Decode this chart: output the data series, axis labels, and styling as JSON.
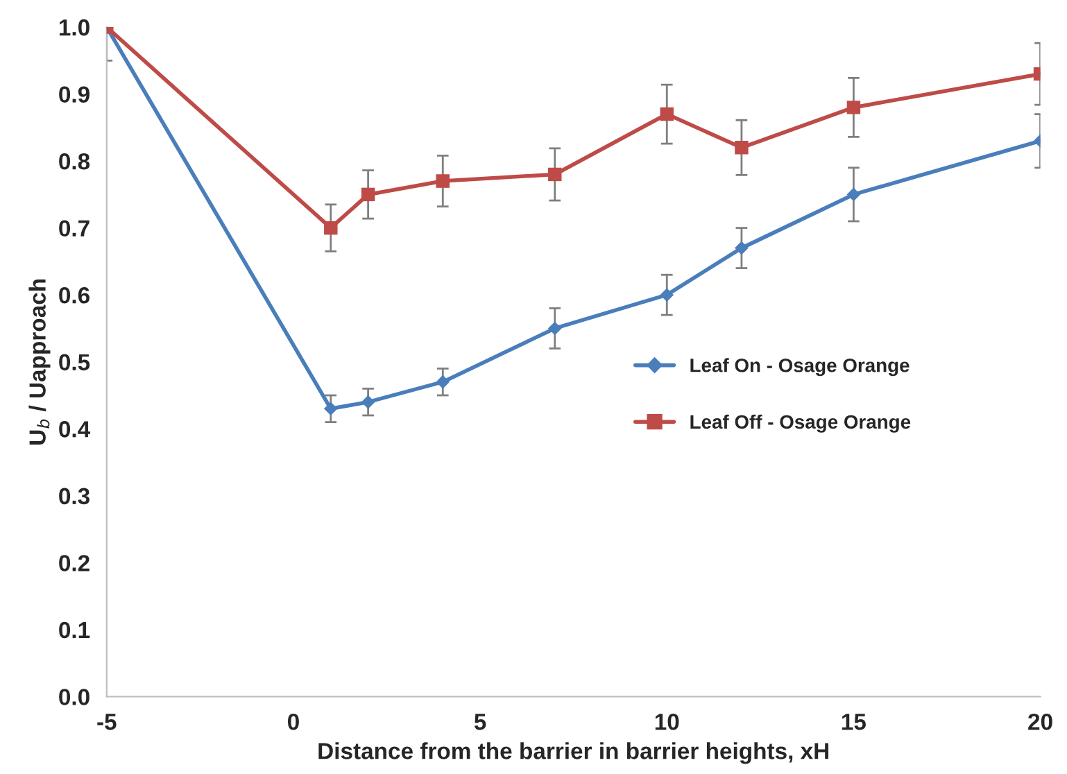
{
  "chart_data": {
    "type": "line",
    "xlabel": "Distance from the barrier in barrier heights, xH",
    "ylabel": "U$_{b}$ / Uapproach",
    "x": [
      -5,
      1,
      2,
      4,
      7,
      10,
      12,
      15,
      20
    ],
    "xlim": [
      -5,
      20
    ],
    "xticks": [
      -5,
      0,
      5,
      10,
      15,
      20
    ],
    "ylim": [
      0,
      1.0
    ],
    "yticks": [
      {
        "value": 0,
        "label": "0.0"
      },
      0.1,
      0.2,
      0.3,
      0.4,
      0.5,
      0.6,
      0.7,
      0.8,
      0.9,
      {
        "value": 1.0,
        "label": "1.0"
      }
    ],
    "grid": false,
    "legend": "right",
    "series": [
      {
        "name": "Leaf On - Osage Orange",
        "color": "#4a7ebb",
        "marker": "diamond",
        "values": [
          1.0,
          0.43,
          0.44,
          0.47,
          0.55,
          0.6,
          0.67,
          0.75,
          0.83
        ],
        "errors": [
          null,
          0.02,
          0.02,
          0.02,
          0.03,
          0.03,
          0.03,
          0.04,
          0.04
        ]
      },
      {
        "name": "Leaf Off - Osage Orange",
        "color": "#be4b48",
        "marker": "square",
        "values": [
          1.0,
          0.7,
          0.75,
          0.77,
          0.78,
          0.87,
          0.82,
          0.88,
          0.93
        ],
        "errors": [
          [
            0.95,
            1.0
          ],
          0.035,
          0.036,
          0.038,
          0.039,
          0.044,
          0.041,
          0.044,
          0.046
        ]
      }
    ]
  }
}
